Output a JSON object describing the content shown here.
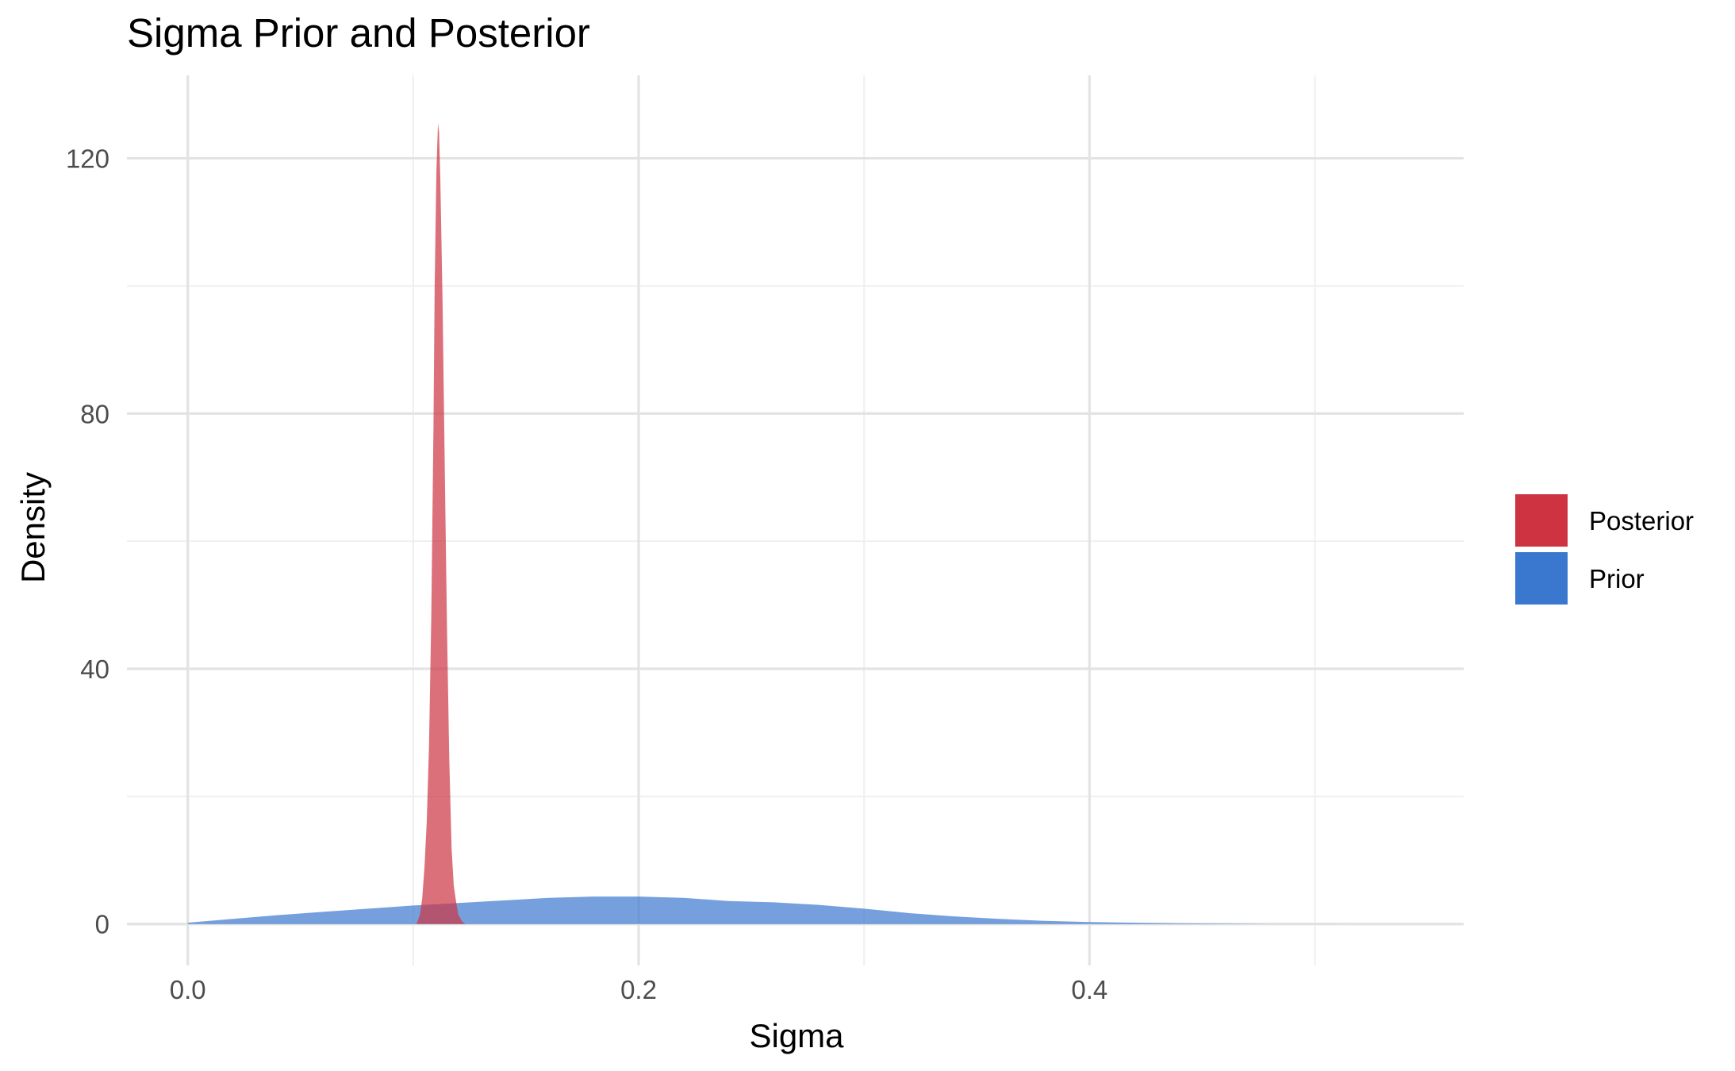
{
  "chart_data": {
    "type": "area",
    "title": "Sigma Prior and Posterior",
    "xlabel": "Sigma",
    "ylabel": "Density",
    "xlim": [
      -0.027,
      0.566
    ],
    "ylim": [
      -6.5,
      133
    ],
    "x_ticks": [
      0.0,
      0.2,
      0.4
    ],
    "x_tick_labels": [
      "0.0",
      "0.2",
      "0.4"
    ],
    "x_minor": [
      0.1,
      0.3,
      0.5
    ],
    "y_ticks": [
      0,
      40,
      80,
      120
    ],
    "y_tick_labels": [
      "0",
      "40",
      "80",
      "120"
    ],
    "y_minor": [
      20,
      60,
      100
    ],
    "grid": true,
    "legend_position": "right",
    "series": [
      {
        "name": "Prior",
        "color": "#3a78cf",
        "fill_opacity": 0.7,
        "x": [
          0.0,
          0.02,
          0.04,
          0.06,
          0.08,
          0.1,
          0.12,
          0.14,
          0.16,
          0.18,
          0.2,
          0.22,
          0.24,
          0.26,
          0.28,
          0.3,
          0.32,
          0.34,
          0.36,
          0.38,
          0.4,
          0.42,
          0.44,
          0.46,
          0.48,
          0.5,
          0.52,
          0.55
        ],
        "y": [
          0.2,
          0.8,
          1.4,
          1.9,
          2.4,
          2.9,
          3.3,
          3.7,
          4.1,
          4.3,
          4.3,
          4.1,
          3.6,
          3.4,
          3.0,
          2.4,
          1.7,
          1.2,
          0.8,
          0.5,
          0.3,
          0.2,
          0.1,
          0.05,
          0.02,
          0.01,
          0.0,
          0.0
        ]
      },
      {
        "name": "Posterior",
        "color": "#cd3341",
        "fill_opacity": 0.7,
        "x": [
          0.1015,
          0.103,
          0.104,
          0.105,
          0.106,
          0.107,
          0.108,
          0.109,
          0.1095,
          0.1103,
          0.111,
          0.1115,
          0.112,
          0.113,
          0.114,
          0.115,
          0.116,
          0.117,
          0.118,
          0.119,
          0.12,
          0.1215,
          0.123
        ],
        "y": [
          0.0,
          1.5,
          4.0,
          9.0,
          16.0,
          28.0,
          48.0,
          78.0,
          100.0,
          118.0,
          125.5,
          124.0,
          117.0,
          98.0,
          72.0,
          46.0,
          26.0,
          12.0,
          6.0,
          3.5,
          1.5,
          0.5,
          0.0
        ]
      }
    ],
    "legend": [
      {
        "name": "Posterior",
        "color": "#cd3341"
      },
      {
        "name": "Prior",
        "color": "#3a78cf"
      }
    ]
  }
}
